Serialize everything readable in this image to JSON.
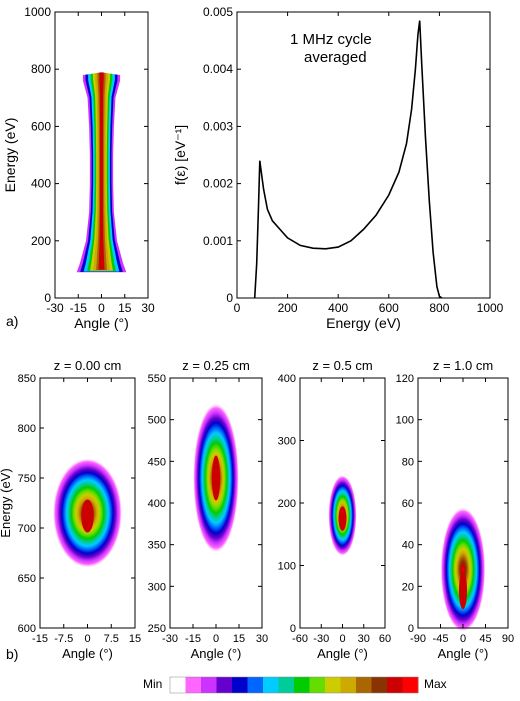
{
  "figure": {
    "label_a": "a)",
    "label_b": "b)",
    "colorbar": {
      "min_label": "Min",
      "max_label": "Max",
      "colors": [
        "#ffffff",
        "#ff66ff",
        "#cc33ff",
        "#6600cc",
        "#0000cc",
        "#0066ff",
        "#00ccff",
        "#00cc99",
        "#00cc00",
        "#66dd00",
        "#cccc00",
        "#ccaa00",
        "#aa6600",
        "#883300",
        "#cc0000",
        "#ff0000"
      ]
    }
  },
  "chart_data": [
    {
      "id": "a-left",
      "type": "heatmap",
      "title": "",
      "xlabel": "Angle (°)",
      "ylabel": "Energy (eV)",
      "xlim": [
        -30,
        30
      ],
      "ylim": [
        0,
        1000
      ],
      "xticks": [
        -30,
        -15,
        0,
        15,
        30
      ],
      "yticks": [
        0,
        200,
        400,
        600,
        800,
        1000
      ],
      "profile": [
        [
          90,
          16
        ],
        [
          120,
          14
        ],
        [
          200,
          10
        ],
        [
          300,
          8
        ],
        [
          400,
          7.5
        ],
        [
          500,
          7.5
        ],
        [
          600,
          8
        ],
        [
          700,
          9
        ],
        [
          760,
          12
        ],
        [
          780,
          12
        ]
      ],
      "peak": [
        0,
        700
      ]
    },
    {
      "id": "a-right",
      "type": "line",
      "title": "",
      "annotation": [
        "1 MHz cycle",
        "averaged"
      ],
      "xlabel": "Energy (eV)",
      "ylabel": "f(ε) [eV⁻¹]",
      "xlim": [
        0,
        1000
      ],
      "ylim": [
        0,
        0.005
      ],
      "xticks": [
        0,
        200,
        400,
        600,
        800,
        1000
      ],
      "yticks": [
        0,
        0.001,
        0.002,
        0.003,
        0.004,
        0.005
      ],
      "ytick_labels": [
        "0",
        "0.001",
        "0.002",
        "0.003",
        "0.004",
        "0.005"
      ],
      "series": [
        {
          "x": [
            70,
            78,
            85,
            90,
            96,
            105,
            120,
            140,
            170,
            200,
            250,
            300,
            350,
            400,
            450,
            500,
            550,
            600,
            640,
            670,
            690,
            705,
            715,
            722,
            730,
            745,
            760,
            775,
            790,
            800,
            810
          ],
          "y": [
            0,
            0.0006,
            0.0016,
            0.0024,
            0.0022,
            0.0019,
            0.00155,
            0.00135,
            0.0012,
            0.00105,
            0.00092,
            0.00087,
            0.00086,
            0.00089,
            0.001,
            0.0012,
            0.00145,
            0.0018,
            0.0022,
            0.0027,
            0.0033,
            0.004,
            0.0046,
            0.00485,
            0.0041,
            0.0028,
            0.0017,
            0.0008,
            0.0002,
            3e-05,
            0
          ]
        }
      ]
    },
    {
      "id": "b-1",
      "type": "heatmap",
      "title": "z = 0.00 cm",
      "xlabel": "Angle (°)",
      "ylabel": "Energy (eV)",
      "xlim": [
        -15,
        15
      ],
      "ylim": [
        600,
        850
      ],
      "xticks": [
        -15,
        -7.5,
        0,
        7.5,
        15
      ],
      "yticks": [
        600,
        650,
        700,
        750,
        800,
        850
      ],
      "blob": {
        "x": 0,
        "y": 715,
        "hw": 11,
        "hh": 55
      },
      "peak": [
        0,
        712
      ]
    },
    {
      "id": "b-2",
      "type": "heatmap",
      "title": "z = 0.25 cm",
      "xlabel": "Angle (°)",
      "ylabel": "",
      "xlim": [
        -30,
        30
      ],
      "ylim": [
        250,
        550
      ],
      "xticks": [
        -30,
        -15,
        0,
        15,
        30
      ],
      "yticks": [
        250,
        300,
        350,
        400,
        450,
        500,
        550
      ],
      "blob": {
        "x": 0,
        "y": 430,
        "hw": 15,
        "hh": 90
      },
      "peak": [
        0,
        430
      ]
    },
    {
      "id": "b-3",
      "type": "heatmap",
      "title": "z = 0.5 cm",
      "xlabel": "Angle (°)",
      "ylabel": "",
      "xlim": [
        -60,
        60
      ],
      "ylim": [
        0,
        400
      ],
      "xticks": [
        -60,
        -30,
        0,
        30,
        60
      ],
      "yticks": [
        0,
        100,
        200,
        300,
        400
      ],
      "blob": {
        "x": 0,
        "y": 180,
        "hw": 20,
        "hh": 65
      },
      "peak": [
        0,
        175
      ]
    },
    {
      "id": "b-4",
      "type": "heatmap",
      "title": "z = 1.0 cm",
      "xlabel": "Angle (°)",
      "ylabel": "",
      "xlim": [
        -90,
        90
      ],
      "ylim": [
        0,
        120
      ],
      "xticks": [
        -90,
        -45,
        0,
        45,
        90
      ],
      "yticks": [
        0,
        20,
        40,
        60,
        80,
        100,
        120
      ],
      "blob": {
        "x": 0,
        "y": 28,
        "hw": 45,
        "hh": 30
      },
      "peak": [
        0,
        18
      ]
    }
  ]
}
